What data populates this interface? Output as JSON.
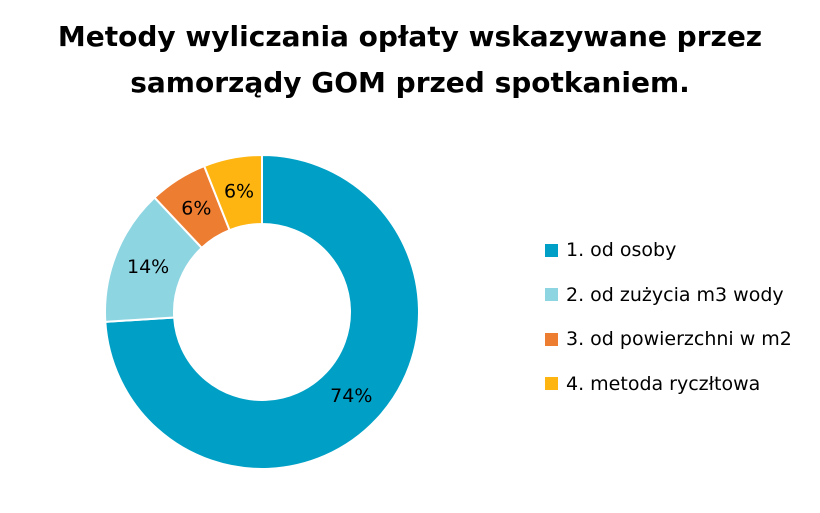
{
  "chart_data": {
    "type": "pie",
    "variant": "donut",
    "title_lines": [
      "Metody wyliczania opłaty wskazywane przez",
      "samorządy GOM przed spotkaniem."
    ],
    "categories": [
      "1. od osoby",
      "2. od zużycia m3 wody",
      "3. od powierzchni w m2",
      "4. metoda ryczłtowa"
    ],
    "values": [
      74,
      14,
      6,
      6
    ],
    "data_labels": [
      "74%",
      "14%",
      "6%",
      "6%"
    ],
    "colors": [
      "#00A0C6",
      "#8ED5E2",
      "#ED7D31",
      "#FFB511"
    ],
    "legend_position": "right"
  }
}
